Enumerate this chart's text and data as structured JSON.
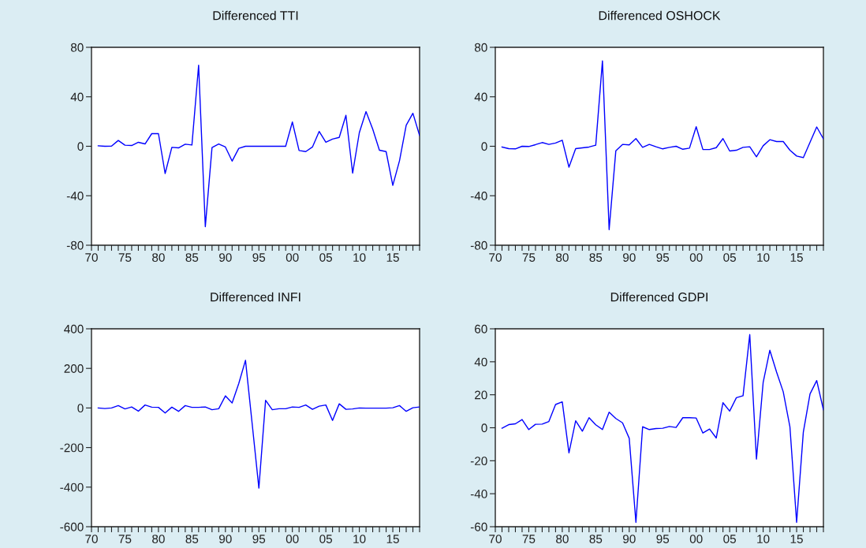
{
  "chart_data": [
    {
      "type": "line",
      "title": "Differenced TTI",
      "x": [
        1971,
        1972,
        1973,
        1974,
        1975,
        1976,
        1977,
        1978,
        1979,
        1980,
        1981,
        1982,
        1983,
        1984,
        1985,
        1986,
        1987,
        1988,
        1989,
        1990,
        1991,
        1992,
        1993,
        1994,
        1995,
        1996,
        1997,
        1998,
        1999,
        2000,
        2001,
        2002,
        2003,
        2004,
        2005,
        2006,
        2007,
        2008,
        2009,
        2010,
        2011,
        2012,
        2013,
        2014,
        2015,
        2016,
        2017,
        2018,
        2019
      ],
      "series": [
        {
          "color": "#0000ff",
          "values": [
            0.4,
            0,
            0.2,
            4.7,
            0.9,
            0.6,
            3.2,
            1.9,
            10.2,
            10.2,
            -22,
            -0.9,
            -1.3,
            1.7,
            1,
            65.5,
            -65,
            -1,
            1.9,
            -0.6,
            -12,
            -1.7,
            0,
            0,
            0,
            0,
            0,
            0,
            0,
            19.6,
            -3.4,
            -4.3,
            -0.6,
            12,
            3.2,
            5.8,
            7.2,
            25,
            -21.7,
            11,
            28,
            13.9,
            -3.2,
            -4.3,
            -31.6,
            -11.7,
            17,
            26.7,
            8.7
          ]
        }
      ],
      "xlim": [
        1970,
        2019
      ],
      "ylim": [
        -80,
        80
      ],
      "yticks": [
        -80,
        -40,
        0,
        40,
        80
      ],
      "xticks": [
        {
          "value": 1970,
          "label": "70"
        },
        {
          "value": 1971,
          "label": null
        },
        {
          "value": 1972,
          "label": null
        },
        {
          "value": 1973,
          "label": null
        },
        {
          "value": 1974,
          "label": null
        },
        {
          "value": 1975,
          "label": "75"
        },
        {
          "value": 1976,
          "label": null
        },
        {
          "value": 1977,
          "label": null
        },
        {
          "value": 1978,
          "label": null
        },
        {
          "value": 1979,
          "label": null
        },
        {
          "value": 1980,
          "label": "80"
        },
        {
          "value": 1981,
          "label": null
        },
        {
          "value": 1982,
          "label": null
        },
        {
          "value": 1983,
          "label": null
        },
        {
          "value": 1984,
          "label": null
        },
        {
          "value": 1985,
          "label": "85"
        },
        {
          "value": 1986,
          "label": null
        },
        {
          "value": 1987,
          "label": null
        },
        {
          "value": 1988,
          "label": null
        },
        {
          "value": 1989,
          "label": null
        },
        {
          "value": 1990,
          "label": "90"
        },
        {
          "value": 1991,
          "label": null
        },
        {
          "value": 1992,
          "label": null
        },
        {
          "value": 1993,
          "label": null
        },
        {
          "value": 1994,
          "label": null
        },
        {
          "value": 1995,
          "label": "95"
        },
        {
          "value": 1996,
          "label": null
        },
        {
          "value": 1997,
          "label": null
        },
        {
          "value": 1998,
          "label": null
        },
        {
          "value": 1999,
          "label": null
        },
        {
          "value": 2000,
          "label": "00"
        },
        {
          "value": 2001,
          "label": null
        },
        {
          "value": 2002,
          "label": null
        },
        {
          "value": 2003,
          "label": null
        },
        {
          "value": 2004,
          "label": null
        },
        {
          "value": 2005,
          "label": "05"
        },
        {
          "value": 2006,
          "label": null
        },
        {
          "value": 2007,
          "label": null
        },
        {
          "value": 2008,
          "label": null
        },
        {
          "value": 2009,
          "label": null
        },
        {
          "value": 2010,
          "label": "10"
        },
        {
          "value": 2011,
          "label": null
        },
        {
          "value": 2012,
          "label": null
        },
        {
          "value": 2013,
          "label": null
        },
        {
          "value": 2014,
          "label": null
        },
        {
          "value": 2015,
          "label": "15"
        },
        {
          "value": 2016,
          "label": null
        },
        {
          "value": 2017,
          "label": null
        },
        {
          "value": 2018,
          "label": null
        },
        {
          "value": 2019,
          "label": null
        }
      ],
      "grid": false
    },
    {
      "type": "line",
      "title": "Differenced OSHOCK",
      "x": [
        1971,
        1972,
        1973,
        1974,
        1975,
        1976,
        1977,
        1978,
        1979,
        1980,
        1981,
        1982,
        1983,
        1984,
        1985,
        1986,
        1987,
        1988,
        1989,
        1990,
        1991,
        1992,
        1993,
        1994,
        1995,
        1996,
        1997,
        1998,
        1999,
        2000,
        2001,
        2002,
        2003,
        2004,
        2005,
        2006,
        2007,
        2008,
        2009,
        2010,
        2011,
        2012,
        2013,
        2014,
        2015,
        2016,
        2017,
        2018,
        2019
      ],
      "series": [
        {
          "color": "#0000ff",
          "values": [
            -0.6,
            -1.9,
            -2.1,
            0,
            -0.2,
            1.3,
            3,
            1.5,
            2.6,
            4.9,
            -16.9,
            -1.9,
            -1.3,
            -0.6,
            0.9,
            69,
            -67.4,
            -3.6,
            1.5,
            1.1,
            6.2,
            -0.9,
            1.5,
            -0.4,
            -2.1,
            -0.9,
            0,
            -2.4,
            -1.5,
            15.8,
            -2.6,
            -2.6,
            -1.1,
            6.2,
            -3.8,
            -3.2,
            -0.9,
            -0.4,
            -8.5,
            0.4,
            5.3,
            3.8,
            3.8,
            -3.2,
            -7.9,
            -9.2,
            3.2,
            15.6,
            6
          ]
        }
      ],
      "xlim": [
        1970,
        2019
      ],
      "ylim": [
        -80,
        80
      ],
      "yticks": [
        -80,
        -40,
        0,
        40,
        80
      ],
      "xticks": [
        {
          "value": 1970,
          "label": "70"
        },
        {
          "value": 1971,
          "label": null
        },
        {
          "value": 1972,
          "label": null
        },
        {
          "value": 1973,
          "label": null
        },
        {
          "value": 1974,
          "label": null
        },
        {
          "value": 1975,
          "label": "75"
        },
        {
          "value": 1976,
          "label": null
        },
        {
          "value": 1977,
          "label": null
        },
        {
          "value": 1978,
          "label": null
        },
        {
          "value": 1979,
          "label": null
        },
        {
          "value": 1980,
          "label": "80"
        },
        {
          "value": 1981,
          "label": null
        },
        {
          "value": 1982,
          "label": null
        },
        {
          "value": 1983,
          "label": null
        },
        {
          "value": 1984,
          "label": null
        },
        {
          "value": 1985,
          "label": "85"
        },
        {
          "value": 1986,
          "label": null
        },
        {
          "value": 1987,
          "label": null
        },
        {
          "value": 1988,
          "label": null
        },
        {
          "value": 1989,
          "label": null
        },
        {
          "value": 1990,
          "label": "90"
        },
        {
          "value": 1991,
          "label": null
        },
        {
          "value": 1992,
          "label": null
        },
        {
          "value": 1993,
          "label": null
        },
        {
          "value": 1994,
          "label": null
        },
        {
          "value": 1995,
          "label": "95"
        },
        {
          "value": 1996,
          "label": null
        },
        {
          "value": 1997,
          "label": null
        },
        {
          "value": 1998,
          "label": null
        },
        {
          "value": 1999,
          "label": null
        },
        {
          "value": 2000,
          "label": "00"
        },
        {
          "value": 2001,
          "label": null
        },
        {
          "value": 2002,
          "label": null
        },
        {
          "value": 2003,
          "label": null
        },
        {
          "value": 2004,
          "label": null
        },
        {
          "value": 2005,
          "label": "05"
        },
        {
          "value": 2006,
          "label": null
        },
        {
          "value": 2007,
          "label": null
        },
        {
          "value": 2008,
          "label": null
        },
        {
          "value": 2009,
          "label": null
        },
        {
          "value": 2010,
          "label": "10"
        },
        {
          "value": 2011,
          "label": null
        },
        {
          "value": 2012,
          "label": null
        },
        {
          "value": 2013,
          "label": null
        },
        {
          "value": 2014,
          "label": null
        },
        {
          "value": 2015,
          "label": "15"
        },
        {
          "value": 2016,
          "label": null
        },
        {
          "value": 2017,
          "label": null
        },
        {
          "value": 2018,
          "label": null
        },
        {
          "value": 2019,
          "label": null
        }
      ],
      "grid": false
    },
    {
      "type": "line",
      "title": "Differenced INFI",
      "x": [
        1971,
        1972,
        1973,
        1974,
        1975,
        1976,
        1977,
        1978,
        1979,
        1980,
        1981,
        1982,
        1983,
        1984,
        1985,
        1986,
        1987,
        1988,
        1989,
        1990,
        1991,
        1992,
        1993,
        1994,
        1995,
        1996,
        1997,
        1998,
        1999,
        2000,
        2001,
        2002,
        2003,
        2004,
        2005,
        2006,
        2007,
        2008,
        2009,
        2010,
        2011,
        2012,
        2013,
        2014,
        2015,
        2016,
        2017,
        2018,
        2019
      ],
      "series": [
        {
          "color": "#0000ff",
          "values": [
            0,
            -3,
            0,
            12,
            -5,
            5,
            -16,
            15,
            4,
            3,
            -25,
            4,
            -17,
            12,
            3,
            3,
            5,
            -9,
            -4,
            61,
            25,
            124,
            241,
            -81,
            -405,
            39,
            -9,
            -4,
            -4,
            5,
            3,
            15,
            -7,
            9,
            15,
            -63,
            21,
            -7,
            -5,
            0,
            -1,
            -1,
            -1,
            -1,
            1,
            12,
            -17,
            1,
            5
          ]
        }
      ],
      "xlim": [
        1970,
        2019
      ],
      "ylim": [
        -600,
        400
      ],
      "yticks": [
        -600,
        -400,
        -200,
        0,
        200,
        400
      ],
      "xticks": [
        {
          "value": 1970,
          "label": "70"
        },
        {
          "value": 1971,
          "label": null
        },
        {
          "value": 1972,
          "label": null
        },
        {
          "value": 1973,
          "label": null
        },
        {
          "value": 1974,
          "label": null
        },
        {
          "value": 1975,
          "label": "75"
        },
        {
          "value": 1976,
          "label": null
        },
        {
          "value": 1977,
          "label": null
        },
        {
          "value": 1978,
          "label": null
        },
        {
          "value": 1979,
          "label": null
        },
        {
          "value": 1980,
          "label": "80"
        },
        {
          "value": 1981,
          "label": null
        },
        {
          "value": 1982,
          "label": null
        },
        {
          "value": 1983,
          "label": null
        },
        {
          "value": 1984,
          "label": null
        },
        {
          "value": 1985,
          "label": "85"
        },
        {
          "value": 1986,
          "label": null
        },
        {
          "value": 1987,
          "label": null
        },
        {
          "value": 1988,
          "label": null
        },
        {
          "value": 1989,
          "label": null
        },
        {
          "value": 1990,
          "label": "90"
        },
        {
          "value": 1991,
          "label": null
        },
        {
          "value": 1992,
          "label": null
        },
        {
          "value": 1993,
          "label": null
        },
        {
          "value": 1994,
          "label": null
        },
        {
          "value": 1995,
          "label": "95"
        },
        {
          "value": 1996,
          "label": null
        },
        {
          "value": 1997,
          "label": null
        },
        {
          "value": 1998,
          "label": null
        },
        {
          "value": 1999,
          "label": null
        },
        {
          "value": 2000,
          "label": "00"
        },
        {
          "value": 2001,
          "label": null
        },
        {
          "value": 2002,
          "label": null
        },
        {
          "value": 2003,
          "label": null
        },
        {
          "value": 2004,
          "label": null
        },
        {
          "value": 2005,
          "label": "05"
        },
        {
          "value": 2006,
          "label": null
        },
        {
          "value": 2007,
          "label": null
        },
        {
          "value": 2008,
          "label": null
        },
        {
          "value": 2009,
          "label": null
        },
        {
          "value": 2010,
          "label": "10"
        },
        {
          "value": 2011,
          "label": null
        },
        {
          "value": 2012,
          "label": null
        },
        {
          "value": 2013,
          "label": null
        },
        {
          "value": 2014,
          "label": null
        },
        {
          "value": 2015,
          "label": "15"
        },
        {
          "value": 2016,
          "label": null
        },
        {
          "value": 2017,
          "label": null
        },
        {
          "value": 2018,
          "label": null
        },
        {
          "value": 2019,
          "label": null
        }
      ],
      "grid": false
    },
    {
      "type": "line",
      "title": "Differenced GDPI",
      "x": [
        1971,
        1972,
        1973,
        1974,
        1975,
        1976,
        1977,
        1978,
        1979,
        1980,
        1981,
        1982,
        1983,
        1984,
        1985,
        1986,
        1987,
        1988,
        1989,
        1990,
        1991,
        1992,
        1993,
        1994,
        1995,
        1996,
        1997,
        1998,
        1999,
        2000,
        2001,
        2002,
        2003,
        2004,
        2005,
        2006,
        2007,
        2008,
        2009,
        2010,
        2011,
        2012,
        2013,
        2014,
        2015,
        2016,
        2017,
        2018,
        2019
      ],
      "series": [
        {
          "color": "#0000ff",
          "values": [
            -0.3,
            1.9,
            2.4,
            5,
            -1.1,
            2.1,
            2.2,
            3.8,
            14.1,
            15.7,
            -15.2,
            4.2,
            -2.1,
            6.1,
            1.8,
            -1.1,
            9.4,
            5.6,
            3,
            -6.4,
            -57.4,
            0.6,
            -1.1,
            -0.5,
            -0.3,
            0.8,
            0.2,
            6.1,
            6.1,
            5.9,
            -3.2,
            -0.8,
            -6.2,
            15.2,
            10.1,
            18.2,
            19.4,
            56.5,
            -19,
            27.4,
            47,
            33.8,
            21.8,
            0.5,
            -57.4,
            -2.7,
            20.5,
            28.6,
            10.9
          ]
        }
      ],
      "xlim": [
        1970,
        2019
      ],
      "ylim": [
        -60,
        60
      ],
      "yticks": [
        -60,
        -40,
        -20,
        0,
        20,
        40,
        60
      ],
      "xticks": [
        {
          "value": 1970,
          "label": "70"
        },
        {
          "value": 1971,
          "label": null
        },
        {
          "value": 1972,
          "label": null
        },
        {
          "value": 1973,
          "label": null
        },
        {
          "value": 1974,
          "label": null
        },
        {
          "value": 1975,
          "label": "75"
        },
        {
          "value": 1976,
          "label": null
        },
        {
          "value": 1977,
          "label": null
        },
        {
          "value": 1978,
          "label": null
        },
        {
          "value": 1979,
          "label": null
        },
        {
          "value": 1980,
          "label": "80"
        },
        {
          "value": 1981,
          "label": null
        },
        {
          "value": 1982,
          "label": null
        },
        {
          "value": 1983,
          "label": null
        },
        {
          "value": 1984,
          "label": null
        },
        {
          "value": 1985,
          "label": "85"
        },
        {
          "value": 1986,
          "label": null
        },
        {
          "value": 1987,
          "label": null
        },
        {
          "value": 1988,
          "label": null
        },
        {
          "value": 1989,
          "label": null
        },
        {
          "value": 1990,
          "label": "90"
        },
        {
          "value": 1991,
          "label": null
        },
        {
          "value": 1992,
          "label": null
        },
        {
          "value": 1993,
          "label": null
        },
        {
          "value": 1994,
          "label": null
        },
        {
          "value": 1995,
          "label": "95"
        },
        {
          "value": 1996,
          "label": null
        },
        {
          "value": 1997,
          "label": null
        },
        {
          "value": 1998,
          "label": null
        },
        {
          "value": 1999,
          "label": null
        },
        {
          "value": 2000,
          "label": "00"
        },
        {
          "value": 2001,
          "label": null
        },
        {
          "value": 2002,
          "label": null
        },
        {
          "value": 2003,
          "label": null
        },
        {
          "value": 2004,
          "label": null
        },
        {
          "value": 2005,
          "label": "05"
        },
        {
          "value": 2006,
          "label": null
        },
        {
          "value": 2007,
          "label": null
        },
        {
          "value": 2008,
          "label": null
        },
        {
          "value": 2009,
          "label": null
        },
        {
          "value": 2010,
          "label": "10"
        },
        {
          "value": 2011,
          "label": null
        },
        {
          "value": 2012,
          "label": null
        },
        {
          "value": 2013,
          "label": null
        },
        {
          "value": 2014,
          "label": null
        },
        {
          "value": 2015,
          "label": "15"
        },
        {
          "value": 2016,
          "label": null
        },
        {
          "value": 2017,
          "label": null
        },
        {
          "value": 2018,
          "label": null
        },
        {
          "value": 2019,
          "label": null
        }
      ],
      "grid": false
    }
  ]
}
